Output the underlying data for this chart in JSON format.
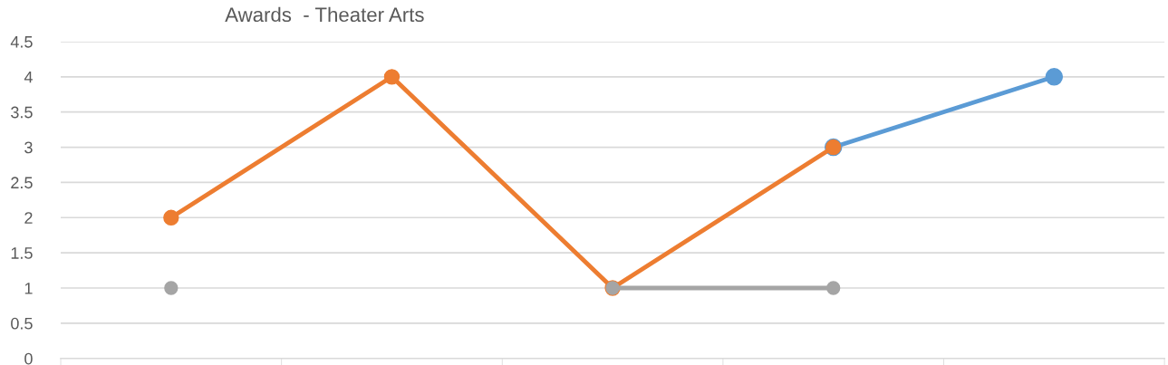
{
  "chart_data": {
    "type": "line",
    "title": "Awards  - Theater Arts",
    "categories": [
      null,
      null,
      null,
      null,
      null
    ],
    "series": [
      {
        "color": "#5b9bd5",
        "values": [
          null,
          null,
          null,
          3,
          4
        ]
      },
      {
        "color": "#ed7d31",
        "values": [
          2,
          4,
          1,
          3,
          null
        ]
      },
      {
        "color": "#a5a5a5",
        "values": [
          1,
          null,
          1,
          1,
          null
        ]
      }
    ],
    "ylim": [
      0,
      4.5
    ],
    "yticks": [
      0,
      0.5,
      1,
      1.5,
      2,
      2.5,
      3,
      3.5,
      4,
      4.5
    ],
    "grid": "y",
    "marker": "circle",
    "line_style": "solid"
  }
}
